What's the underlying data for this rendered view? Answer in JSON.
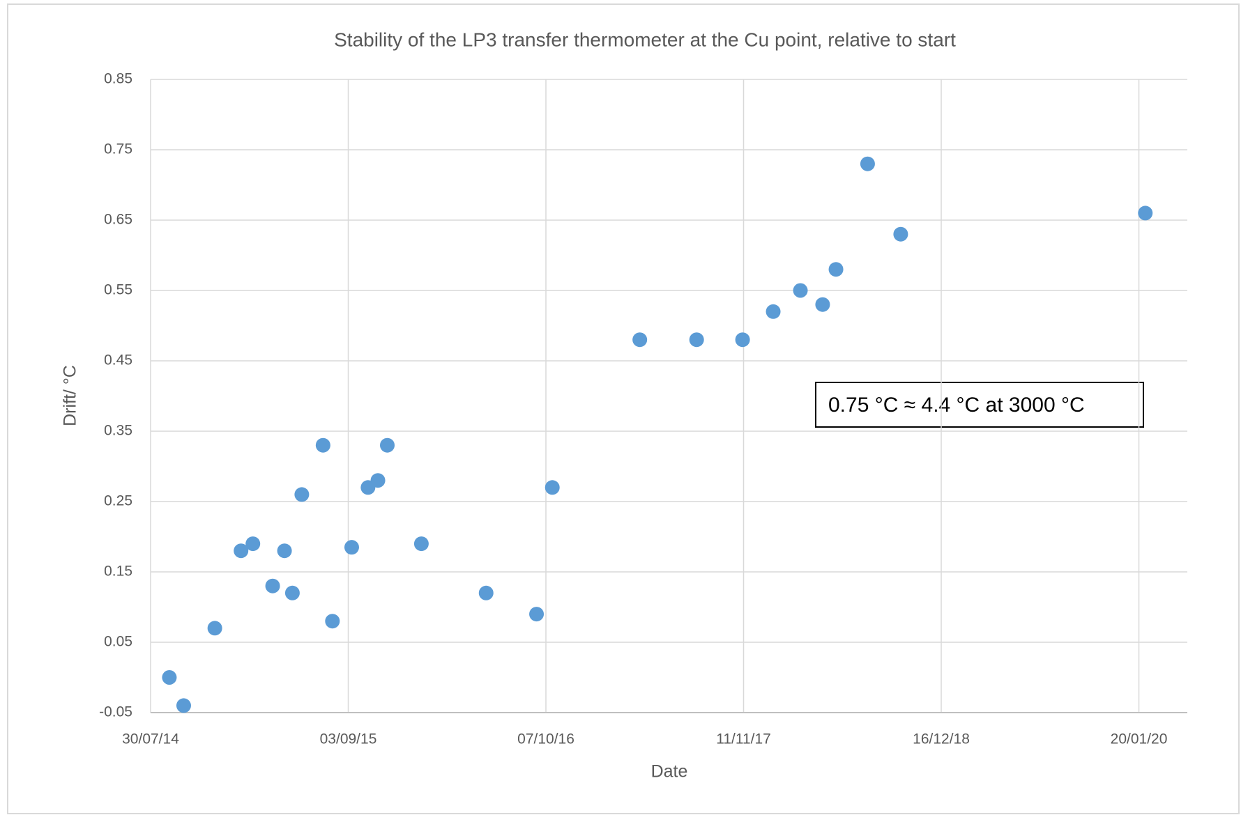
{
  "chart_data": {
    "type": "scatter",
    "title": "Stability of the LP3 transfer thermometer at the Cu point, relative to start",
    "x_label": "Date",
    "y_label": "Drift/ °C",
    "annotation": "0.75 °C ≈ 4.4 °C at 3000 °C",
    "color": "#5b9bd5",
    "grid": true,
    "xlim": [
      "2014-07-30",
      "2020-04-27"
    ],
    "xticks": [
      {
        "value": "2014-07-30",
        "label": "30/07/14"
      },
      {
        "value": "2015-09-03",
        "label": "03/09/15"
      },
      {
        "value": "2016-10-07",
        "label": "07/10/16"
      },
      {
        "value": "2017-11-11",
        "label": "11/11/17"
      },
      {
        "value": "2018-12-16",
        "label": "16/12/18"
      },
      {
        "value": "2020-01-20",
        "label": "20/01/20"
      }
    ],
    "ylim": [
      -0.05,
      0.85
    ],
    "yticks": [
      -0.05,
      0.05,
      0.15,
      0.25,
      0.35,
      0.45,
      0.55,
      0.65,
      0.75,
      0.85
    ],
    "x": [
      "2014-09-06",
      "2014-10-05",
      "2014-12-07",
      "2015-01-29",
      "2015-02-22",
      "2015-04-03",
      "2015-04-27",
      "2015-05-13",
      "2015-06-01",
      "2015-07-14",
      "2015-08-02",
      "2015-09-10",
      "2015-10-13",
      "2015-11-02",
      "2015-11-21",
      "2016-01-29",
      "2016-06-08",
      "2016-09-18",
      "2016-10-20",
      "2017-04-15",
      "2017-08-08",
      "2017-11-09",
      "2018-01-10",
      "2018-03-06",
      "2018-04-20",
      "2018-05-17",
      "2018-07-20",
      "2018-09-25",
      "2020-02-02"
    ],
    "values": [
      0.0,
      -0.04,
      0.07,
      0.18,
      0.19,
      0.13,
      0.18,
      0.12,
      0.26,
      0.33,
      0.08,
      0.185,
      0.27,
      0.28,
      0.33,
      0.19,
      0.12,
      0.09,
      0.27,
      0.48,
      0.48,
      0.48,
      0.52,
      0.55,
      0.53,
      0.58,
      0.73,
      0.63,
      0.66
    ]
  }
}
